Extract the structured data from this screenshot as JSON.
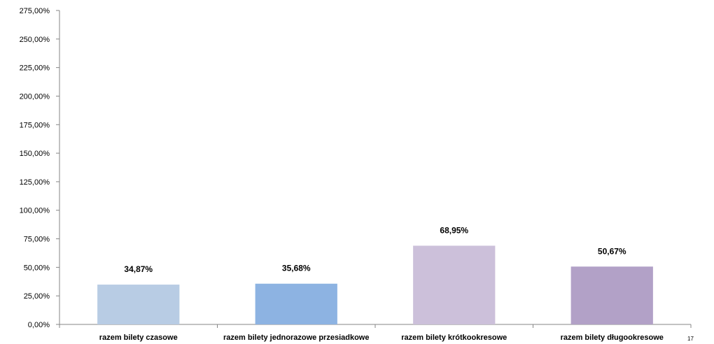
{
  "chart_data": {
    "type": "bar",
    "title": "",
    "xlabel": "",
    "ylabel": "",
    "categories": [
      "razem bilety czasowe",
      "razem bilety jednorazowe przesiadkowe",
      "razem bilety krótkookresowe",
      "razem bilety długookresowe"
    ],
    "values": [
      34.87,
      35.68,
      68.95,
      50.67
    ],
    "data_labels": [
      "34,87%",
      "35,68%",
      "68,95%",
      "50,67%"
    ],
    "bar_colors": [
      "#b8cce4",
      "#8db3e2",
      "#ccc0da",
      "#b2a1c7"
    ],
    "ylim": [
      0,
      275
    ],
    "yticks": [
      0,
      25,
      50,
      75,
      100,
      125,
      150,
      175,
      200,
      225,
      250,
      275
    ],
    "ytick_labels": [
      "0,00%",
      "25,00%",
      "50,00%",
      "75,00%",
      "100,00%",
      "125,00%",
      "150,00%",
      "175,00%",
      "200,00%",
      "225,00%",
      "250,00%",
      "275,00%"
    ],
    "grid": false,
    "legend": "none"
  },
  "page_number": "17"
}
